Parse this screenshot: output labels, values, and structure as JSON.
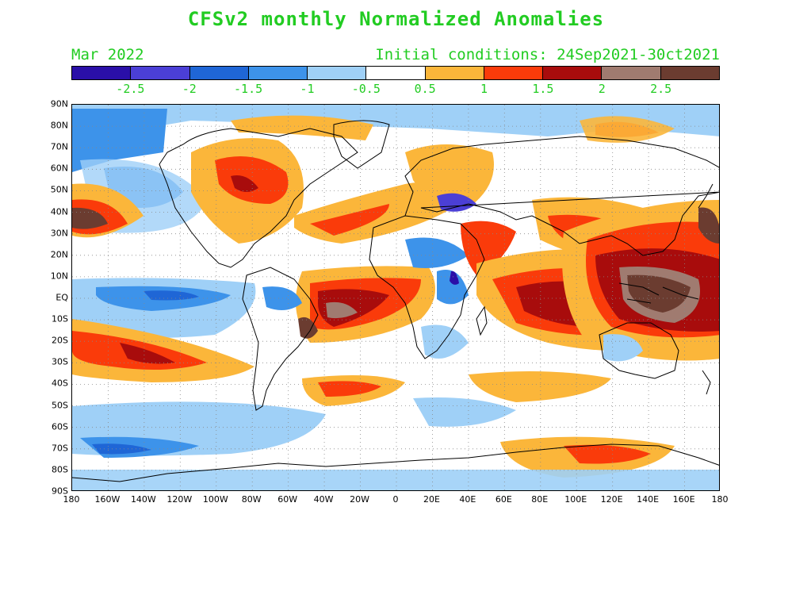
{
  "title": "CFSv2 monthly Normalized Anomalies",
  "subtitle_left": "Mar 2022",
  "subtitle_right": "Initial conditions: 24Sep2021-30ct2021",
  "text_color": "#22cc22",
  "colorbar": {
    "colors": [
      "#2a0fa8",
      "#4b3fd6",
      "#1f66d6",
      "#3d93ea",
      "#9fd0f7",
      "#ffffff",
      "#fbb63a",
      "#fa3b0a",
      "#a80c0c",
      "#a07b70",
      "#6b3c30"
    ],
    "labels": [
      "-2.5",
      "-2",
      "-1.5",
      "-1",
      "-0.5",
      "0.5",
      "1",
      "1.5",
      "2",
      "2.5"
    ]
  },
  "lat_labels": [
    "90N",
    "80N",
    "70N",
    "60N",
    "50N",
    "40N",
    "30N",
    "20N",
    "10N",
    "EQ",
    "10S",
    "20S",
    "30S",
    "40S",
    "50S",
    "60S",
    "70S",
    "80S",
    "90S"
  ],
  "lon_labels": [
    "180",
    "160W",
    "140W",
    "120W",
    "100W",
    "80W",
    "60W",
    "40W",
    "20W",
    "0",
    "20E",
    "40E",
    "60E",
    "80E",
    "100E",
    "120E",
    "140E",
    "160E",
    "180"
  ]
}
